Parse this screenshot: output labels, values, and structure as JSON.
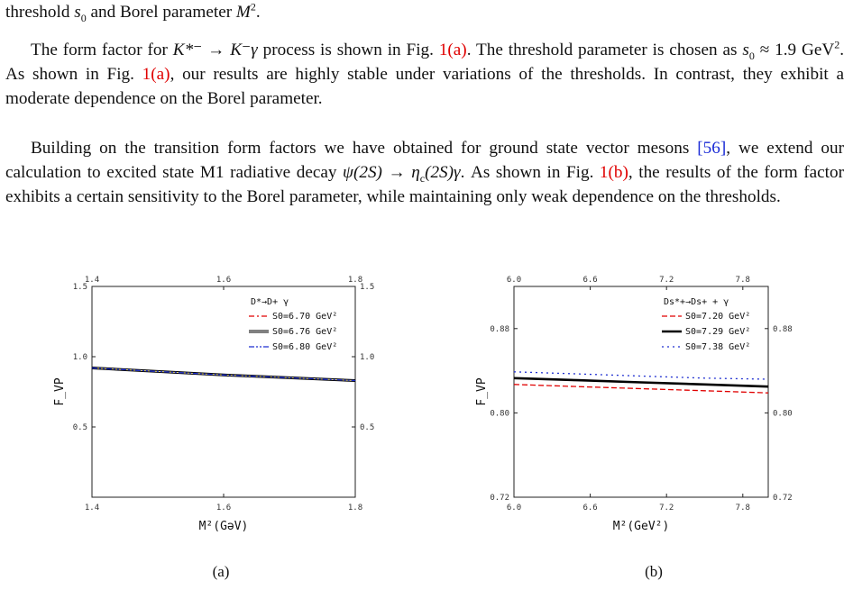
{
  "text": {
    "line0_pre": "threshold ",
    "line0_mid": " and Borel parameter ",
    "p1_a": "The form factor for ",
    "p1_b": " process is shown in Fig. ",
    "p1_ref1": "1(a)",
    "p1_c": ". The threshold parameter is chosen as ",
    "p1_d": ". As shown in Fig. ",
    "p1_ref2": "1(a)",
    "p1_e": ", our results are highly stable under variations of the thresholds. In contrast, they exhibit a moderate dependence on the Borel parameter.",
    "p2_a": "Building on the transition form factors we have obtained for ground state vector mesons ",
    "p2_cite": "[56]",
    "p2_b": ", we extend our calculation to excited state M1 radiative decay ",
    "p2_c": ". As shown in Fig. ",
    "p2_ref": "1(b)",
    "p2_d": ", the results of the form factor exhibits a certain sensitivity to the Borel parameter, while maintaining only weak dependence on the thresholds.",
    "m_s0": "s",
    "m_s0_sub": "0",
    "m_M": "M",
    "m_M_sup": "2",
    "m_kaon_decay": "K*⁻ → K⁻γ",
    "m_s0_value": "≈ 1.9 GeV",
    "m_s0_value_sup": "2",
    "m_psi_decay": "ψ(2S) → η",
    "m_psi_decay_sub": "c",
    "m_psi_decay_tail": "(2S)γ"
  },
  "captions": {
    "a": "(a)",
    "b": "(b)"
  },
  "chart_data": [
    {
      "type": "line",
      "panel": "(a)",
      "title": "",
      "xlabel": "M²(GəV)",
      "ylabel": "F_VP",
      "xlim": [
        1.4,
        1.8
      ],
      "ylim": [
        0.0,
        1.5
      ],
      "xticks": [
        "1.4",
        "1.6",
        "1.8"
      ],
      "xticks_top": [
        "1.4",
        "1.6",
        "1.8"
      ],
      "yticks": [
        "0.5",
        "1.0",
        "1.5"
      ],
      "yticks_right": [
        "0.5",
        "1.0",
        "1.5"
      ],
      "legend_title": "D*→D+ γ",
      "legend_position": "top-right",
      "grid": false,
      "x": [
        1.4,
        1.5,
        1.6,
        1.7,
        1.8
      ],
      "series": [
        {
          "name": "S0=6.70 GeV²",
          "color": "#e00000",
          "style": "dashdot",
          "values": [
            0.92,
            0.895,
            0.87,
            0.85,
            0.83
          ]
        },
        {
          "name": "S0=6.76 GeV²",
          "color": "#000000",
          "style": "double",
          "values": [
            0.92,
            0.895,
            0.87,
            0.85,
            0.83
          ]
        },
        {
          "name": "S0=6.80 GeV²",
          "color": "#1f2fd0",
          "style": "dashdotdot",
          "values": [
            0.92,
            0.895,
            0.87,
            0.85,
            0.83
          ]
        }
      ]
    },
    {
      "type": "line",
      "panel": "(b)",
      "title": "",
      "xlabel": "M²(GeV²)",
      "ylabel": "F_VP",
      "xlim": [
        6.0,
        8.0
      ],
      "ylim": [
        0.72,
        0.92
      ],
      "xticks": [
        "6.0",
        "6.6",
        "7.2",
        "7.8"
      ],
      "xticks_top": [
        "6.0",
        "6.6",
        "7.2",
        "7.8"
      ],
      "yticks": [
        "0.72",
        "0.80",
        "0.88"
      ],
      "yticks_right": [
        "0.72",
        "0.80",
        "0.88"
      ],
      "legend_title": "Ds*+→Ds+ + γ",
      "legend_position": "top-right",
      "grid": false,
      "x": [
        6.0,
        6.5,
        7.0,
        7.5,
        8.0
      ],
      "series": [
        {
          "name": "S0=7.20 GeV²",
          "color": "#e00000",
          "style": "dashed",
          "values": [
            0.827,
            0.825,
            0.823,
            0.821,
            0.819
          ]
        },
        {
          "name": "S0=7.29 GeV²",
          "color": "#000000",
          "style": "solid",
          "values": [
            0.833,
            0.831,
            0.829,
            0.827,
            0.825
          ]
        },
        {
          "name": "S0=7.38 GeV²",
          "color": "#1f2fd0",
          "style": "dotted",
          "values": [
            0.839,
            0.837,
            0.835,
            0.833,
            0.832
          ]
        }
      ]
    }
  ]
}
